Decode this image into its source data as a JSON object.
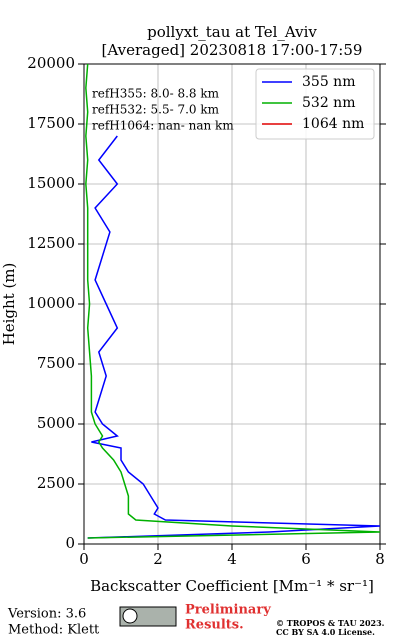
{
  "chart_data": {
    "type": "profile",
    "title": "pollyxt_tau at Tel_Aviv",
    "subtitle": "[Averaged] 20230818 17:00-17:59",
    "xlabel": "Backscatter Coefficient [Mm⁻¹ * sr⁻¹]",
    "ylabel": "Height (m)",
    "xlim": [
      0,
      8
    ],
    "xticks": [
      0,
      2,
      4,
      6,
      8
    ],
    "ylim": [
      0,
      20000
    ],
    "yticks": [
      0,
      2500,
      5000,
      7500,
      10000,
      12500,
      15000,
      17500,
      20000
    ],
    "grid": true,
    "legend": "upper right",
    "annotations": [
      "refH355:  8.0- 8.8 km",
      "refH532:  5.5- 7.0 km",
      "refH1064:  nan- nan km"
    ],
    "y": [
      250,
      500,
      750,
      1000,
      1250,
      1500,
      2000,
      2500,
      3000,
      3500,
      4000,
      4250,
      4500,
      5000,
      5500,
      6000,
      7000,
      8000,
      9000,
      10000,
      11000,
      12000,
      13000,
      14000,
      15000,
      16000,
      17000,
      18000,
      19000,
      20000
    ],
    "series": [
      {
        "name": "355 nm",
        "color": "#0000ff",
        "values": [
          0.1,
          5,
          8,
          2.2,
          1.9,
          2.0,
          1.8,
          1.6,
          1.2,
          1.0,
          1.0,
          0.2,
          0.9,
          0.5,
          0.3,
          0.4,
          0.6,
          0.4,
          0.9,
          0.6,
          0.3,
          0.5,
          0.7,
          0.3,
          0.9,
          0.4,
          0.9,
          null,
          null,
          null
        ]
      },
      {
        "name": "532 nm",
        "color": "#00b000",
        "values": [
          0.1,
          8,
          4,
          1.4,
          1.2,
          1.2,
          1.2,
          1.1,
          1.0,
          0.8,
          0.5,
          0.4,
          0.5,
          0.3,
          0.2,
          0.2,
          0.2,
          0.15,
          0.1,
          0.15,
          0.1,
          0.1,
          0.1,
          0.1,
          0.05,
          0.1,
          0.05,
          0.1,
          0.05,
          0.1
        ]
      },
      {
        "name": "1064 nm",
        "color": "#e00000",
        "values": [
          null,
          null,
          null,
          null,
          null,
          null,
          null,
          null,
          null,
          null,
          null,
          null,
          null,
          null,
          null,
          null,
          null,
          null,
          null,
          null,
          null,
          null,
          null,
          null,
          null,
          null,
          null,
          null,
          null,
          null
        ]
      }
    ]
  },
  "footer": {
    "version": "Version: 3.6",
    "method": "Method: Klett",
    "preliminary": "Preliminary",
    "results": "Results.",
    "copyright": "© TROPOS & TAU 2023.",
    "license": "CC BY SA 4.0 License."
  }
}
